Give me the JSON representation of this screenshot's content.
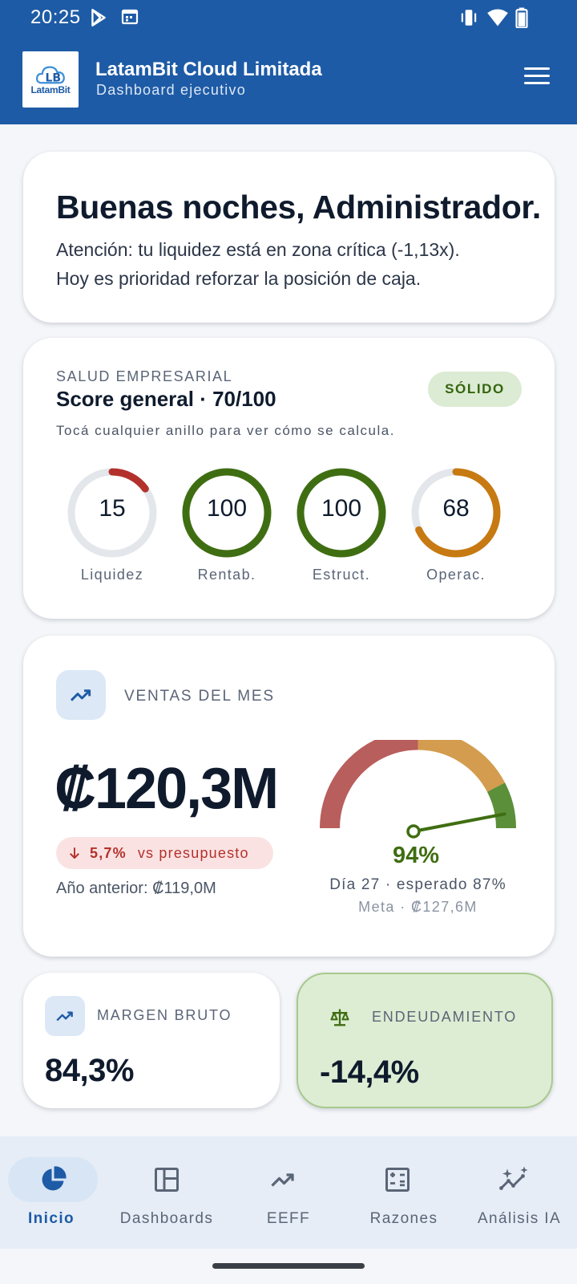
{
  "status_bar": {
    "time": "20:25",
    "icons": [
      "play-store-icon",
      "calendar-icon",
      "vibrate-icon",
      "wifi-icon",
      "battery-icon"
    ]
  },
  "app_bar": {
    "logo_text": "LatamBit",
    "title": "LatamBit Cloud Limitada",
    "subtitle": "Dashboard ejecutivo",
    "menu_icon": "hamburger-menu-icon"
  },
  "greeting": {
    "heading": "Buenas noches, Administrador.",
    "line1": "Atención: tu liquidez está en zona crítica (-1,13x).",
    "line2": "Hoy es prioridad reforzar la posición de caja."
  },
  "health": {
    "kicker": "SALUD EMPRESARIAL",
    "score": "Score general · 70/100",
    "badge": "SÓLIDO",
    "hint": "Tocá cualquier anillo para ver cómo se calcula.",
    "rings": [
      {
        "value": "15",
        "fraction": 0.15,
        "label": "Liquidez",
        "color": "#B3312C"
      },
      {
        "value": "100",
        "fraction": 1.0,
        "label": "Rentab.",
        "color": "#3F6E12"
      },
      {
        "value": "100",
        "fraction": 1.0,
        "label": "Estruct.",
        "color": "#3F6E12"
      },
      {
        "value": "68",
        "fraction": 0.68,
        "label": "Operac.",
        "color": "#C77A12"
      }
    ]
  },
  "sales": {
    "kicker": "VENTAS DEL MES",
    "amount": "₡120,3M",
    "delta_pct": "5,7%",
    "delta_text": "vs presupuesto",
    "previous_year": "Año anterior: ₡119,0M",
    "gauge_value": 0.94,
    "gauge_pct": "94%",
    "gauge_line1": "Día 27 · esperado 87%",
    "gauge_line2": "Meta · ₡127,6M",
    "colors": {
      "red": "#B85E5C",
      "amber": "#D39C4E",
      "green": "#5C8F3A",
      "needle": "#3F6E12"
    }
  },
  "margin": {
    "kicker": "MARGEN BRUTO",
    "value": "84,3%"
  },
  "debt": {
    "kicker": "ENDEUDAMIENTO",
    "value": "-14,4%"
  },
  "bottom_nav": [
    {
      "label": "Inicio",
      "icon": "pie-chart-icon",
      "active": true
    },
    {
      "label": "Dashboards",
      "icon": "dashboard-layout-icon",
      "active": false
    },
    {
      "label": "EEFF",
      "icon": "trend-line-icon",
      "active": false
    },
    {
      "label": "Razones",
      "icon": "calculator-icon",
      "active": false
    },
    {
      "label": "Análisis IA",
      "icon": "ai-sparkle-trend-icon",
      "active": false
    }
  ],
  "accent": "#1E5BA6"
}
